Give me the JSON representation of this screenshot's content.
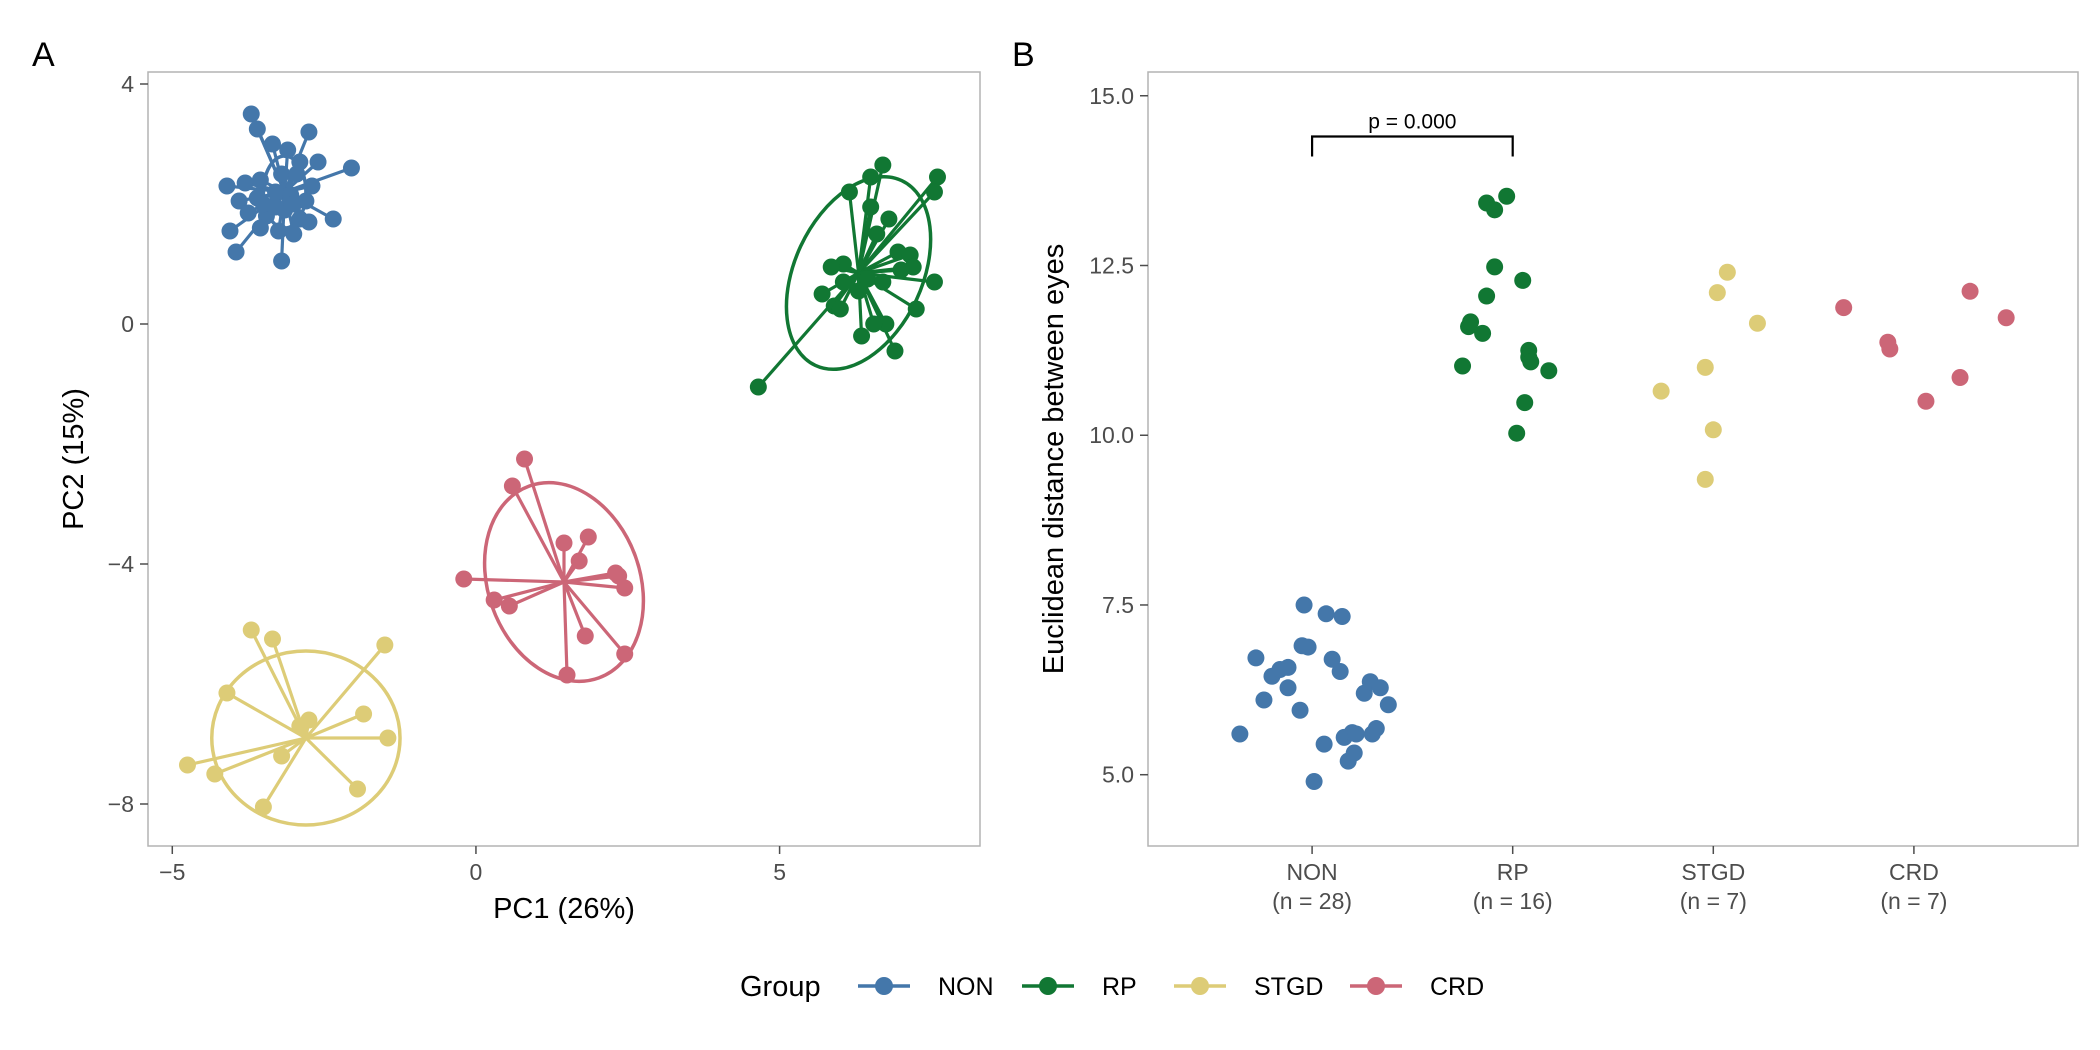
{
  "chart_data": [
    {
      "panel": "A",
      "type": "scatter",
      "title": "",
      "xlabel": "PC1 (26%)",
      "ylabel": "PC2 (15%)",
      "xlim": [
        -5.4,
        8.3
      ],
      "ylim": [
        -8.7,
        4.2
      ],
      "xticks": [
        -5,
        0,
        5
      ],
      "xtick_labels": [
        "−5",
        "0",
        "5"
      ],
      "yticks": [
        4,
        0,
        -4,
        -8
      ],
      "ytick_labels": [
        "4",
        "0",
        "−4",
        "−8"
      ],
      "grid": false,
      "ellipses": true,
      "segments_to_centroid": true,
      "series": [
        {
          "name": "NON",
          "color": "#4477AA",
          "centroid": [
            -3.15,
            2.2
          ],
          "ellipse": {
            "rx": 0.35,
            "ry": 0.6,
            "angle": 0
          },
          "points": [
            [
              -3.7,
              3.5
            ],
            [
              -3.6,
              3.25
            ],
            [
              -3.35,
              3.0
            ],
            [
              -2.75,
              3.2
            ],
            [
              -3.1,
              2.9
            ],
            [
              -2.9,
              2.7
            ],
            [
              -2.6,
              2.7
            ],
            [
              -2.05,
              2.6
            ],
            [
              -4.1,
              2.3
            ],
            [
              -3.8,
              2.35
            ],
            [
              -3.55,
              2.4
            ],
            [
              -3.2,
              2.5
            ],
            [
              -2.95,
              2.5
            ],
            [
              -2.7,
              2.3
            ],
            [
              -3.9,
              2.05
            ],
            [
              -3.6,
              2.1
            ],
            [
              -3.3,
              2.2
            ],
            [
              -3.05,
              2.15
            ],
            [
              -2.8,
              2.05
            ],
            [
              -3.75,
              1.85
            ],
            [
              -3.45,
              1.8
            ],
            [
              -3.15,
              1.9
            ],
            [
              -2.9,
              1.75
            ],
            [
              -2.75,
              1.7
            ],
            [
              -2.35,
              1.75
            ],
            [
              -3.55,
              1.6
            ],
            [
              -3.25,
              1.55
            ],
            [
              -3.0,
              1.5
            ],
            [
              -4.05,
              1.55
            ],
            [
              -3.95,
              1.2
            ],
            [
              -3.2,
              1.05
            ],
            [
              -3.5,
              2.0
            ],
            [
              -3.3,
              1.95
            ],
            [
              -3.0,
              2.0
            ]
          ]
        },
        {
          "name": "RP",
          "color": "#117733",
          "centroid": [
            6.3,
            0.85
          ],
          "ellipse": {
            "rx": 1.05,
            "ry": 1.7,
            "angle": 25
          },
          "points": [
            [
              4.65,
              -1.05
            ],
            [
              6.7,
              2.65
            ],
            [
              6.5,
              2.45
            ],
            [
              6.15,
              2.2
            ],
            [
              7.6,
              2.45
            ],
            [
              7.55,
              2.2
            ],
            [
              6.5,
              1.95
            ],
            [
              6.8,
              1.75
            ],
            [
              6.05,
              1.0
            ],
            [
              5.85,
              0.95
            ],
            [
              6.95,
              1.2
            ],
            [
              7.15,
              1.15
            ],
            [
              7.2,
              0.95
            ],
            [
              6.45,
              0.75
            ],
            [
              6.05,
              0.7
            ],
            [
              6.3,
              0.55
            ],
            [
              5.7,
              0.5
            ],
            [
              5.9,
              0.3
            ],
            [
              6.7,
              0.7
            ],
            [
              7.55,
              0.7
            ],
            [
              6.0,
              0.25
            ],
            [
              7.25,
              0.25
            ],
            [
              6.75,
              0.0
            ],
            [
              6.55,
              0.0
            ],
            [
              6.35,
              -0.2
            ],
            [
              6.9,
              -0.45
            ],
            [
              6.6,
              1.5
            ],
            [
              7.0,
              0.9
            ]
          ]
        },
        {
          "name": "STGD",
          "color": "#DDCC77",
          "centroid": [
            -2.8,
            -6.9
          ],
          "ellipse": {
            "rx": 1.55,
            "ry": 1.45,
            "angle": 0
          },
          "points": [
            [
              -3.7,
              -5.1
            ],
            [
              -3.35,
              -5.25
            ],
            [
              -1.5,
              -5.35
            ],
            [
              -4.1,
              -6.15
            ],
            [
              -2.75,
              -6.6
            ],
            [
              -2.9,
              -6.7
            ],
            [
              -1.85,
              -6.5
            ],
            [
              -1.45,
              -6.9
            ],
            [
              -3.2,
              -7.2
            ],
            [
              -4.3,
              -7.5
            ],
            [
              -4.75,
              -7.35
            ],
            [
              -1.95,
              -7.75
            ],
            [
              -3.5,
              -8.05
            ]
          ]
        },
        {
          "name": "CRD",
          "color": "#CC6677",
          "centroid": [
            1.45,
            -4.3
          ],
          "ellipse": {
            "rx": 1.25,
            "ry": 1.7,
            "angle": -20
          },
          "points": [
            [
              0.8,
              -2.25
            ],
            [
              0.6,
              -2.7
            ],
            [
              1.85,
              -3.55
            ],
            [
              1.45,
              -3.65
            ],
            [
              1.7,
              -3.95
            ],
            [
              2.35,
              -4.2
            ],
            [
              2.3,
              -4.15
            ],
            [
              2.45,
              -4.4
            ],
            [
              -0.2,
              -4.25
            ],
            [
              0.3,
              -4.6
            ],
            [
              0.55,
              -4.7
            ],
            [
              1.8,
              -5.2
            ],
            [
              2.45,
              -5.5
            ],
            [
              1.5,
              -5.85
            ]
          ]
        }
      ]
    },
    {
      "panel": "B",
      "type": "scatter",
      "title": "",
      "xlabel": "",
      "ylabel": "Euclidean distance between eyes",
      "ylim": [
        3.95,
        15.35
      ],
      "yticks": [
        15.0,
        12.5,
        10.0,
        7.5,
        5.0
      ],
      "ytick_labels": [
        "15.0",
        "12.5",
        "10.0",
        "7.5",
        "5.0"
      ],
      "categories": [
        "NON",
        "RP",
        "STGD",
        "CRD"
      ],
      "category_labels": [
        [
          "NON",
          "(n = 28)"
        ],
        [
          "RP",
          "(n = 16)"
        ],
        [
          "STGD",
          "(n = 7)"
        ],
        [
          "CRD",
          "(n = 7)"
        ]
      ],
      "grid": false,
      "annotation": {
        "text": "p = 0.000",
        "from": "NON",
        "to": "RP",
        "y": 14.4
      },
      "series": [
        {
          "name": "NON",
          "color": "#4477AA",
          "points": [
            [
              -0.36,
              5.6
            ],
            [
              -0.28,
              6.72
            ],
            [
              -0.24,
              6.1
            ],
            [
              -0.2,
              6.45
            ],
            [
              -0.16,
              6.55
            ],
            [
              -0.12,
              6.58
            ],
            [
              -0.12,
              6.28
            ],
            [
              -0.06,
              5.95
            ],
            [
              -0.05,
              6.9
            ],
            [
              -0.04,
              7.5
            ],
            [
              -0.02,
              6.88
            ],
            [
              0.01,
              4.9
            ],
            [
              0.06,
              5.45
            ],
            [
              0.07,
              7.37
            ],
            [
              0.1,
              6.7
            ],
            [
              0.14,
              6.52
            ],
            [
              0.15,
              7.33
            ],
            [
              0.16,
              5.55
            ],
            [
              0.18,
              5.2
            ],
            [
              0.2,
              5.62
            ],
            [
              0.21,
              5.32
            ],
            [
              0.22,
              5.6
            ],
            [
              0.26,
              6.2
            ],
            [
              0.29,
              6.37
            ],
            [
              0.3,
              5.6
            ],
            [
              0.32,
              5.68
            ],
            [
              0.34,
              6.28
            ],
            [
              0.38,
              6.03
            ]
          ]
        },
        {
          "name": "RP",
          "color": "#117733",
          "points": [
            [
              -0.25,
              11.02
            ],
            [
              -0.22,
              11.6
            ],
            [
              -0.21,
              11.67
            ],
            [
              -0.15,
              11.5
            ],
            [
              -0.13,
              12.05
            ],
            [
              -0.13,
              13.42
            ],
            [
              -0.09,
              13.32
            ],
            [
              -0.09,
              12.48
            ],
            [
              -0.03,
              13.52
            ],
            [
              0.02,
              10.03
            ],
            [
              0.05,
              12.28
            ],
            [
              0.06,
              10.48
            ],
            [
              0.08,
              11.25
            ],
            [
              0.08,
              11.15
            ],
            [
              0.09,
              11.08
            ],
            [
              0.18,
              10.95
            ]
          ]
        },
        {
          "name": "STGD",
          "color": "#DDCC77",
          "points": [
            [
              -0.26,
              10.65
            ],
            [
              -0.04,
              11.0
            ],
            [
              -0.04,
              9.35
            ],
            [
              0.02,
              12.1
            ],
            [
              0.0,
              10.08
            ],
            [
              0.07,
              12.4
            ],
            [
              0.22,
              11.65
            ]
          ]
        },
        {
          "name": "CRD",
          "color": "#CC6677",
          "points": [
            [
              -0.35,
              11.88
            ],
            [
              -0.13,
              11.37
            ],
            [
              -0.12,
              11.27
            ],
            [
              0.06,
              10.5
            ],
            [
              0.23,
              10.85
            ],
            [
              0.28,
              12.12
            ],
            [
              0.46,
              11.73
            ]
          ]
        }
      ]
    }
  ],
  "panel_letters": {
    "a": "A",
    "b": "B"
  },
  "legend": {
    "title": "Group",
    "position": "bottom-center",
    "items": [
      {
        "label": "NON",
        "color": "#4477AA"
      },
      {
        "label": "RP",
        "color": "#117733"
      },
      {
        "label": "STGD",
        "color": "#DDCC77"
      },
      {
        "label": "CRD",
        "color": "#CC6677"
      }
    ]
  }
}
